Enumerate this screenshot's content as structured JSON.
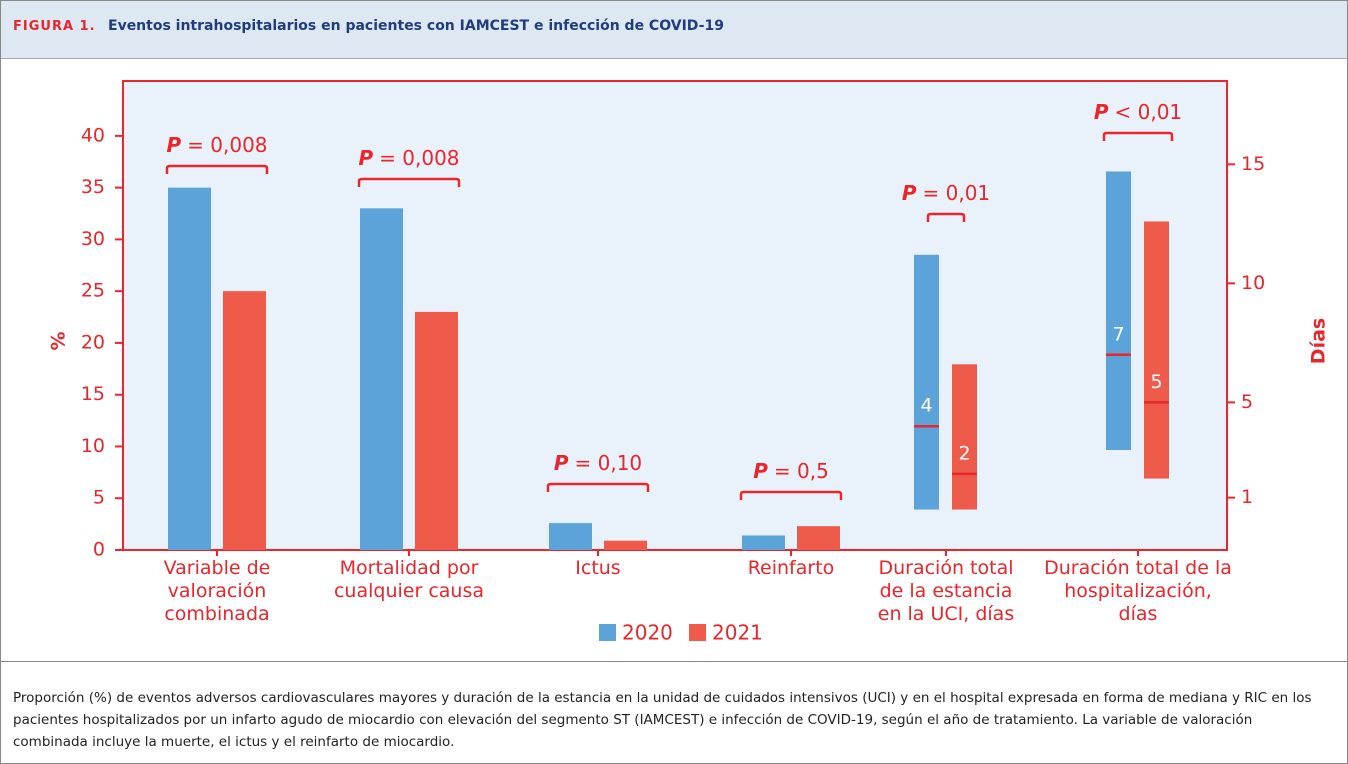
{
  "header": {
    "figure_label": "FIGURA 1.",
    "title": "Eventos intrahospitalarios en pacientes con IAMCEST e infección de COVID-19"
  },
  "chart_data": {
    "type": "bar",
    "ylabel": "%",
    "y2label": "Días",
    "ylim": [
      0,
      45.3
    ],
    "yticks": [
      0,
      5,
      10,
      15,
      20,
      25,
      30,
      35,
      40
    ],
    "y2lim": [
      -1.2,
      18.5
    ],
    "y2ticks": [
      1,
      5,
      10,
      15
    ],
    "categories": [
      "Variable de valoración combinada",
      "Mortalidad por cualquier causa",
      "Ictus",
      "Reinfarto",
      "Duración total de la estancia en la UCI, días",
      "Duración total de la hospitalización, días"
    ],
    "series": [
      {
        "name": "2020",
        "color": "#5ba3d9",
        "values": [
          35,
          33,
          2.6,
          1.4,
          null,
          null
        ],
        "low": [
          null,
          null,
          null,
          null,
          0.5,
          3.0
        ],
        "median": [
          null,
          null,
          null,
          null,
          4,
          7
        ],
        "high": [
          null,
          null,
          null,
          null,
          11.2,
          14.7
        ]
      },
      {
        "name": "2021",
        "color": "#ef5b4b",
        "values": [
          25,
          23,
          0.9,
          2.3,
          null,
          null
        ],
        "low": [
          null,
          null,
          null,
          null,
          0.5,
          1.8
        ],
        "median": [
          null,
          null,
          null,
          null,
          2,
          5
        ],
        "high": [
          null,
          null,
          null,
          null,
          6.6,
          12.6
        ]
      }
    ],
    "annotations": [
      {
        "italic": "P",
        "text": "= 0,008"
      },
      {
        "italic": "P",
        "text": "= 0,008"
      },
      {
        "italic": "P",
        "text": "= 0,10"
      },
      {
        "italic": "P",
        "text": "= 0,5"
      },
      {
        "italic": "P",
        "text": "= 0,01"
      },
      {
        "italic": "P",
        "text": "< 0,01"
      }
    ],
    "axis_color": "#e8262b",
    "median_color": "#e8262b"
  },
  "caption": "Proporción (%) de eventos adversos cardiovasculares mayores y duración de la estancia en la unidad de cuidados intensivos (UCI) y en el hospital expresada en forma de mediana y RIC en los pacientes hospitalizados por un infarto agudo de miocardio con elevación del segmento ST (IAMCEST) e infección de COVID-19, según el año de tratamiento. La variable de valoración combinada incluye la muerte, el ictus y el reinfarto de miocardio."
}
